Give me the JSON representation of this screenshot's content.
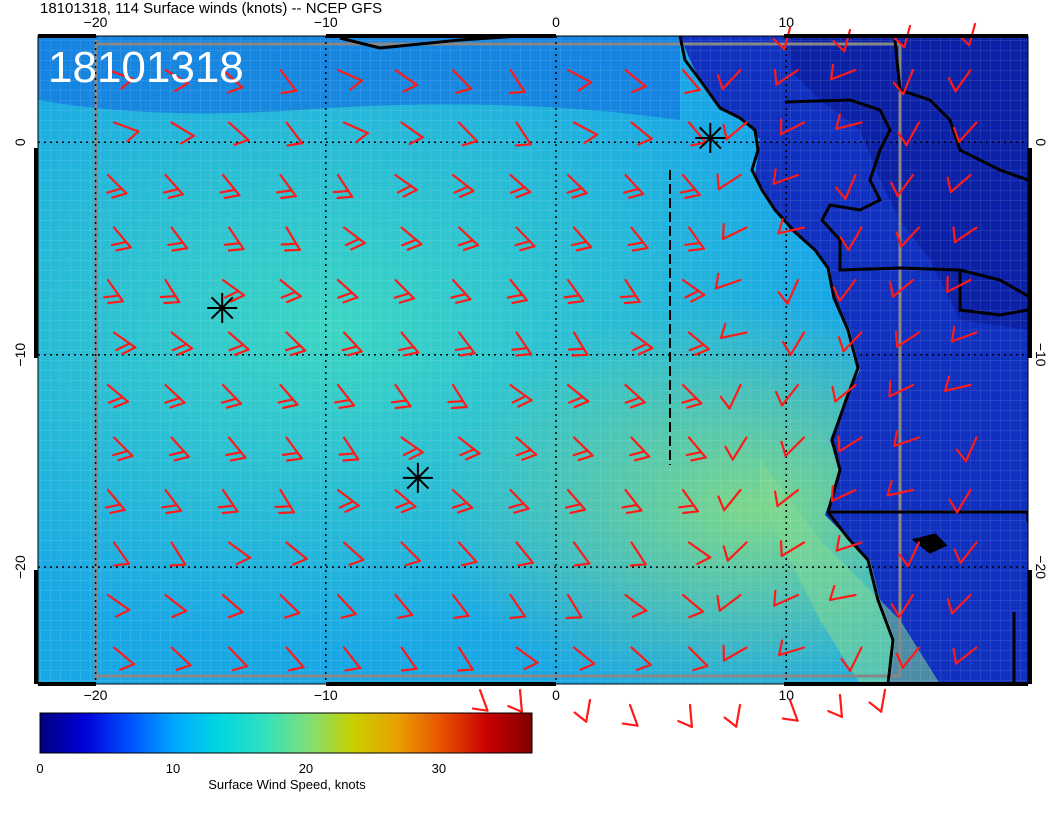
{
  "title": "18101318, 114 Surface winds (knots) -- NCEP GFS",
  "stamp": "18101318",
  "colorbar": {
    "label": "Surface Wind Speed, knots",
    "ticks": [
      "0",
      "10",
      "20",
      "30"
    ],
    "range": [
      0,
      37
    ],
    "colors": [
      "#00007f",
      "#0000d8",
      "#0050ff",
      "#00a8ff",
      "#00d7e0",
      "#30e0c0",
      "#7ee07a",
      "#c8d000",
      "#e8a000",
      "#e85000",
      "#c80000",
      "#800000"
    ]
  },
  "map": {
    "lon_range": [
      -22.5,
      20.5
    ],
    "lat_range": [
      -25.5,
      5
    ],
    "lon_ticks": [
      "−20",
      "−10",
      "0",
      "10"
    ],
    "lat_ticks": [
      "0",
      "−10",
      "−20"
    ],
    "grid": true,
    "ocean_colors": [
      "#19a8e6",
      "#1ec8e0",
      "#35d8c4"
    ],
    "land_color": "#1030c0",
    "barb_color": "#ff1a1a",
    "markers": [
      {
        "name": "marker-1",
        "lon": -14.5,
        "lat": -7.8
      },
      {
        "name": "marker-2",
        "lon": -6,
        "lat": -15.8
      },
      {
        "name": "marker-3",
        "lon": 6.7,
        "lat": 0.2
      }
    ]
  }
}
